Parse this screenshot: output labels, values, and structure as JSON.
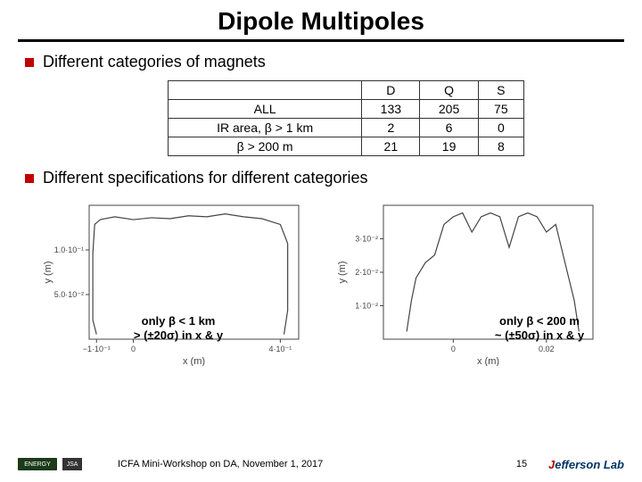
{
  "title": "Dipole Multipoles",
  "bullet1": "Different categories of magnets",
  "bullet2": "Different specifications for different categories",
  "table": {
    "headers": [
      "",
      "D",
      "Q",
      "S"
    ],
    "rows": [
      {
        "label": "ALL",
        "d": "133",
        "q": "205",
        "s": "75"
      },
      {
        "label": "IR area, β > 1 km",
        "d": "2",
        "q": "6",
        "s": "0"
      },
      {
        "label": "β > 200 m",
        "d": "21",
        "q": "19",
        "s": "8"
      }
    ]
  },
  "chart_left": {
    "caption_l1": "only β < 1 km",
    "caption_l2": "> (±20σ) in x & y",
    "xlabel": "x (m)",
    "ylabel": "y (m)",
    "xticks": [
      "−1·10⁻¹",
      "0",
      "4·10⁻¹"
    ],
    "yticks": [
      "5.0·10⁻²",
      "1.0·10⁻¹"
    ],
    "color": "#444444",
    "background": "#ffffff",
    "xlim": [
      -0.12,
      0.45
    ],
    "ylim": [
      0,
      0.14
    ],
    "points": [
      [
        -0.1,
        0.005
      ],
      [
        -0.11,
        0.02
      ],
      [
        -0.11,
        0.05
      ],
      [
        -0.11,
        0.09
      ],
      [
        -0.105,
        0.12
      ],
      [
        -0.09,
        0.125
      ],
      [
        -0.05,
        0.128
      ],
      [
        0.0,
        0.125
      ],
      [
        0.05,
        0.127
      ],
      [
        0.1,
        0.126
      ],
      [
        0.15,
        0.129
      ],
      [
        0.2,
        0.128
      ],
      [
        0.25,
        0.131
      ],
      [
        0.3,
        0.128
      ],
      [
        0.35,
        0.126
      ],
      [
        0.4,
        0.12
      ],
      [
        0.42,
        0.1
      ],
      [
        0.42,
        0.06
      ],
      [
        0.42,
        0.03
      ],
      [
        0.41,
        0.005
      ]
    ]
  },
  "chart_right": {
    "caption_l1": "only β < 200 m",
    "caption_l2": "~ (±50σ) in x & y",
    "xlabel": "x (m)",
    "ylabel": "y (m)",
    "xticks": [
      "0",
      "0.02"
    ],
    "yticks": [
      "1·10⁻²",
      "2·10⁻²",
      "3·10⁻²"
    ],
    "color": "#444444",
    "background": "#ffffff",
    "xlim": [
      -0.015,
      0.03
    ],
    "ylim": [
      0,
      0.035
    ],
    "points": [
      [
        -0.01,
        0.002
      ],
      [
        -0.009,
        0.01
      ],
      [
        -0.008,
        0.016
      ],
      [
        -0.006,
        0.02
      ],
      [
        -0.004,
        0.022
      ],
      [
        -0.002,
        0.03
      ],
      [
        0.0,
        0.032
      ],
      [
        0.002,
        0.033
      ],
      [
        0.004,
        0.028
      ],
      [
        0.006,
        0.032
      ],
      [
        0.008,
        0.033
      ],
      [
        0.01,
        0.032
      ],
      [
        0.012,
        0.024
      ],
      [
        0.014,
        0.032
      ],
      [
        0.016,
        0.033
      ],
      [
        0.018,
        0.032
      ],
      [
        0.02,
        0.028
      ],
      [
        0.022,
        0.03
      ],
      [
        0.024,
        0.02
      ],
      [
        0.026,
        0.01
      ],
      [
        0.027,
        0.002
      ]
    ]
  },
  "footer": {
    "energy": "ENERGY",
    "jsa": "JSA",
    "center": "ICFA Mini-Workshop on DA, November 1, 2017",
    "page": "15",
    "lab": "Jefferson Lab"
  }
}
